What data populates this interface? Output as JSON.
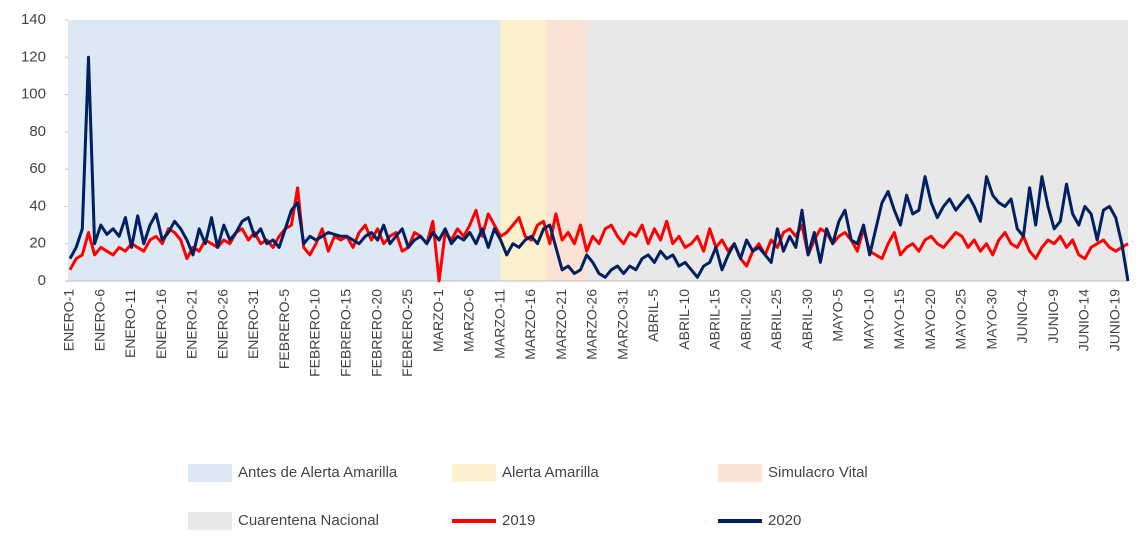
{
  "chart_data": {
    "type": "line",
    "categories": [
      "ENERO-1",
      null,
      null,
      null,
      null,
      "ENERO-6",
      null,
      null,
      null,
      null,
      "ENERO-11",
      null,
      null,
      null,
      null,
      "ENERO-16",
      null,
      null,
      null,
      null,
      "ENERO-21",
      null,
      null,
      null,
      null,
      "ENERO-26",
      null,
      null,
      null,
      null,
      "ENERO-31",
      null,
      null,
      null,
      null,
      "FEBRERO-5",
      null,
      null,
      null,
      null,
      "FEBRERO-10",
      null,
      null,
      null,
      null,
      "FEBRERO-15",
      null,
      null,
      null,
      null,
      "FEBRERO-20",
      null,
      null,
      null,
      null,
      "FEBRERO-25",
      null,
      null,
      null,
      null,
      "MARZO-1",
      null,
      null,
      null,
      null,
      "MARZO-6",
      null,
      null,
      null,
      null,
      "MARZO-11",
      null,
      null,
      null,
      null,
      "MARZO-16",
      null,
      null,
      null,
      null,
      "MARZO-21",
      null,
      null,
      null,
      null,
      "MARZO-26",
      null,
      null,
      null,
      null,
      "MARZO-31",
      null,
      null,
      null,
      null,
      "ABRIL-5",
      null,
      null,
      null,
      null,
      "ABRIL-10",
      null,
      null,
      null,
      null,
      "ABRIL-15",
      null,
      null,
      null,
      null,
      "ABRIL-20",
      null,
      null,
      null,
      null,
      "ABRIL-25",
      null,
      null,
      null,
      null,
      "ABRIL-30",
      null,
      null,
      null,
      null,
      "MAYO-5",
      null,
      null,
      null,
      null,
      "MAYO-10",
      null,
      null,
      null,
      null,
      "MAYO-15",
      null,
      null,
      null,
      null,
      "MAYO-20",
      null,
      null,
      null,
      null,
      "MAYO-25",
      null,
      null,
      null,
      null,
      "MAYO-30",
      null,
      null,
      null,
      null,
      "JUNIO-4",
      null,
      null,
      null,
      null,
      "JUNIO-9",
      null,
      null,
      null,
      null,
      "JUNIO-14",
      null,
      null,
      null,
      null,
      "JUNIO-19",
      null,
      null
    ],
    "series": [
      {
        "name": "2019",
        "color": "#ff0000",
        "values": [
          6,
          12,
          14,
          26,
          14,
          18,
          16,
          14,
          18,
          16,
          20,
          18,
          16,
          22,
          24,
          20,
          28,
          26,
          22,
          12,
          18,
          16,
          22,
          20,
          18,
          22,
          20,
          26,
          28,
          22,
          26,
          20,
          22,
          18,
          24,
          28,
          30,
          50,
          18,
          14,
          20,
          28,
          16,
          24,
          22,
          24,
          18,
          26,
          30,
          22,
          28,
          20,
          24,
          26,
          16,
          18,
          26,
          24,
          20,
          32,
          0,
          26,
          22,
          28,
          24,
          30,
          38,
          24,
          36,
          30,
          24,
          26,
          30,
          34,
          24,
          22,
          30,
          32,
          20,
          36,
          22,
          26,
          20,
          30,
          16,
          24,
          20,
          28,
          30,
          24,
          20,
          26,
          24,
          30,
          20,
          28,
          22,
          32,
          20,
          24,
          18,
          20,
          24,
          16,
          28,
          18,
          22,
          16,
          20,
          12,
          8,
          16,
          20,
          14,
          22,
          18,
          26,
          28,
          24,
          30,
          14,
          22,
          28,
          26,
          20,
          24,
          26,
          22,
          16,
          28,
          16,
          14,
          12,
          20,
          26,
          14,
          18,
          20,
          16,
          22,
          24,
          20,
          18,
          22,
          26,
          24,
          18,
          22,
          16,
          20,
          14,
          22,
          26,
          20,
          18,
          24,
          16,
          12,
          18,
          22,
          20,
          24,
          18,
          22,
          14,
          12,
          18,
          20,
          22,
          18,
          16,
          18,
          20
        ]
      },
      {
        "name": "2020",
        "color": "#002060",
        "values": [
          12,
          18,
          28,
          120,
          20,
          30,
          25,
          28,
          24,
          34,
          18,
          35,
          20,
          30,
          36,
          22,
          26,
          32,
          28,
          22,
          14,
          28,
          20,
          34,
          18,
          30,
          22,
          26,
          32,
          34,
          24,
          28,
          20,
          22,
          18,
          28,
          38,
          42,
          20,
          24,
          22,
          24,
          26,
          25,
          24,
          24,
          22,
          20,
          24,
          26,
          22,
          30,
          20,
          24,
          28,
          18,
          22,
          24,
          20,
          26,
          22,
          28,
          20,
          24,
          22,
          26,
          20,
          28,
          18,
          28,
          22,
          14,
          20,
          18,
          22,
          24,
          20,
          28,
          30,
          18,
          6,
          8,
          4,
          6,
          14,
          10,
          4,
          2,
          6,
          8,
          4,
          8,
          6,
          12,
          14,
          10,
          16,
          12,
          14,
          8,
          10,
          6,
          2,
          8,
          10,
          18,
          6,
          14,
          20,
          12,
          22,
          16,
          18,
          14,
          10,
          28,
          16,
          24,
          18,
          38,
          14,
          26,
          10,
          28,
          20,
          32,
          38,
          22,
          20,
          30,
          14,
          28,
          42,
          48,
          38,
          30,
          46,
          36,
          38,
          56,
          42,
          34,
          40,
          44,
          38,
          42,
          46,
          40,
          32,
          56,
          46,
          42,
          40,
          44,
          28,
          24,
          50,
          30,
          56,
          40,
          28,
          32,
          52,
          36,
          30,
          40,
          36,
          22,
          38,
          40,
          34,
          20,
          0
        ]
      }
    ],
    "bands": [
      {
        "name": "Antes de Alerta Amarilla",
        "color": "#dde8f5",
        "x_range": [
          0,
          70
        ]
      },
      {
        "name": "Alerta Amarilla",
        "color": "#fdf0cc",
        "x_range": [
          70,
          77.5
        ]
      },
      {
        "name": "Simulacro Vital",
        "color": "#fae2d4",
        "x_range": [
          77.5,
          84
        ]
      },
      {
        "name": "Cuarentena Nacional",
        "color": "#e8e8e8",
        "x_range": [
          84,
          172
        ]
      }
    ],
    "xlim": [
      0,
      172
    ],
    "ylim": [
      0,
      140
    ],
    "yticks": [
      0,
      20,
      40,
      60,
      80,
      100,
      120,
      140
    ]
  }
}
